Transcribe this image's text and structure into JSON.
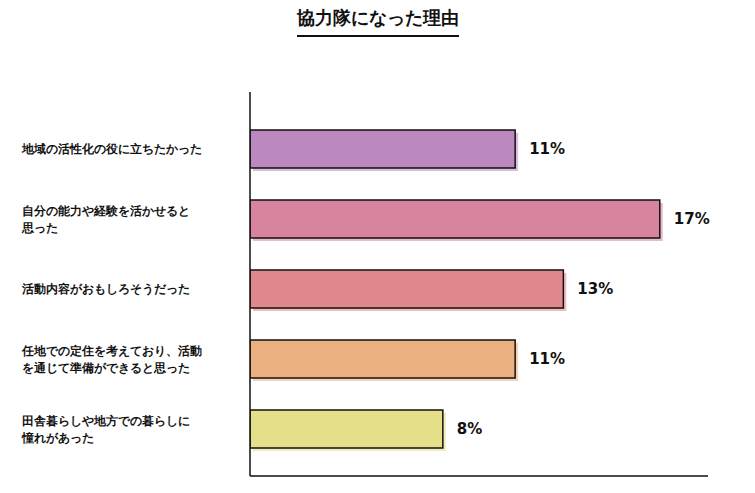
{
  "chart_data": {
    "type": "bar",
    "title": "協力隊になった理由",
    "orientation": "horizontal",
    "categories": [
      "地域の活性化の役に立ちたかった",
      "自分の能力や経験を活かせると\n思った",
      "活動内容がおもしろそうだった",
      "任地での定住を考えており、活動\nを通じて準備ができると思った",
      "田舎暮らしや地方での暮らしに\n憧れがあった"
    ],
    "values": [
      11,
      17,
      13,
      11,
      8
    ],
    "value_labels": [
      "11%",
      "17%",
      "13%",
      "11%",
      "8%"
    ],
    "colors": [
      "#bb88c0",
      "#d9849f",
      "#e0888b",
      "#ebb07f",
      "#e4df88"
    ],
    "xlim": [
      0,
      19
    ],
    "data_labels": true,
    "tick_labels": "y",
    "grid": false
  }
}
